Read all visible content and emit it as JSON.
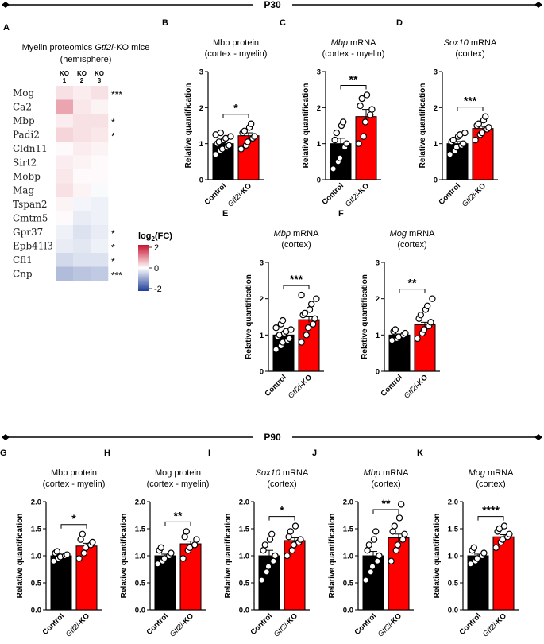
{
  "sections": {
    "top": {
      "label": "P30"
    },
    "bottom": {
      "label": "P90"
    }
  },
  "heatmap": {
    "letter": "A",
    "title_line1_prefix": "Myelin proteomics ",
    "title_line1_italic": "Gtf2i",
    "title_line1_suffix": "-KO mice",
    "title_line2": "(hemisphere)",
    "columns": [
      {
        "top": "KO",
        "bottom": "1"
      },
      {
        "top": "KO",
        "bottom": "2"
      },
      {
        "top": "KO",
        "bottom": "3"
      }
    ],
    "rows": [
      {
        "gene": "Mog",
        "sig": "***",
        "values": [
          0.25,
          0.15,
          0.25
        ]
      },
      {
        "gene": "Ca2",
        "sig": "",
        "values": [
          0.75,
          0.2,
          0.1
        ]
      },
      {
        "gene": "Mbp",
        "sig": "*",
        "values": [
          0.15,
          0.25,
          0.25
        ]
      },
      {
        "gene": "Padi2",
        "sig": "*",
        "values": [
          0.35,
          0.25,
          0.2
        ]
      },
      {
        "gene": "Cldn11",
        "sig": "",
        "values": [
          0.05,
          0.15,
          0.1
        ]
      },
      {
        "gene": "Sirt2",
        "sig": "",
        "values": [
          0.15,
          0.1,
          0.05
        ]
      },
      {
        "gene": "Mobp",
        "sig": "",
        "values": [
          0.2,
          0.05,
          0.05
        ]
      },
      {
        "gene": "Mag",
        "sig": "",
        "values": [
          0.25,
          0.1,
          -0.05
        ]
      },
      {
        "gene": "Tspan2",
        "sig": "",
        "values": [
          0.1,
          -0.1,
          -0.15
        ]
      },
      {
        "gene": "Cmtm5",
        "sig": "",
        "values": [
          0.05,
          -0.2,
          -0.15
        ]
      },
      {
        "gene": "Gpr37",
        "sig": "*",
        "values": [
          -0.15,
          -0.3,
          -0.2
        ]
      },
      {
        "gene": "Epb41l3",
        "sig": "*",
        "values": [
          -0.2,
          -0.25,
          -0.15
        ]
      },
      {
        "gene": "Cfl1",
        "sig": "*",
        "values": [
          -0.4,
          -0.3,
          -0.3
        ]
      },
      {
        "gene": "Cnp",
        "sig": "***",
        "values": [
          -0.7,
          -0.6,
          -0.55
        ]
      }
    ],
    "legend": {
      "title_prefix": "log",
      "title_sub": "2",
      "title_suffix": "(FC)",
      "ticks": [
        "2",
        "0",
        "-2"
      ]
    },
    "colors": {
      "red": "#c8102e",
      "white": "#ffffff",
      "blue": "#1f3f99"
    }
  },
  "chart_data": [
    {
      "id": "B",
      "type": "bar",
      "title_italic": "",
      "title_rest": "Mbp protein",
      "subtitle": "(cortex - myelin)",
      "ylabel": "Relative quantification",
      "ylim": [
        0,
        3
      ],
      "yticks": [
        "0",
        "1",
        "2",
        "3"
      ],
      "categories": [
        "Control",
        "Gtf2i-KO"
      ],
      "cat2_italic": "Gtf2i",
      "cat2_rest": "-KO",
      "values": [
        1.0,
        1.22
      ],
      "errors": [
        0.07,
        0.08
      ],
      "points": [
        [
          0.7,
          0.8,
          0.85,
          0.9,
          0.95,
          1.0,
          1.05,
          1.1,
          1.15,
          1.2,
          1.25,
          1.3
        ],
        [
          0.85,
          0.95,
          1.05,
          1.15,
          1.2,
          1.3,
          1.35,
          1.45,
          1.55
        ]
      ],
      "sig": "*"
    },
    {
      "id": "C",
      "type": "bar",
      "title_italic": "Mbp",
      "title_rest": " mRNA",
      "subtitle": "(cortex - myelin)",
      "ylabel": "Relative quantification",
      "ylim": [
        0,
        3
      ],
      "yticks": [
        "0",
        "1",
        "2",
        "3"
      ],
      "categories": [
        "Control",
        "Gtf2i-KO"
      ],
      "cat2_italic": "Gtf2i",
      "cat2_rest": "-KO",
      "values": [
        1.0,
        1.75
      ],
      "errors": [
        0.15,
        0.2
      ],
      "points": [
        [
          0.3,
          0.5,
          0.6,
          0.9,
          1.0,
          1.1,
          1.3,
          1.5,
          1.6
        ],
        [
          1.0,
          1.2,
          1.6,
          1.8,
          1.95,
          2.05,
          2.25,
          2.35
        ]
      ],
      "sig": "**"
    },
    {
      "id": "D",
      "type": "bar",
      "title_italic": "Sox10",
      "title_rest": " mRNA",
      "subtitle": "(cortex)",
      "ylabel": "Relative quantification",
      "ylim": [
        0,
        3
      ],
      "yticks": [
        "0",
        "1",
        "2",
        "3"
      ],
      "categories": [
        "Control",
        "Gtf2i-KO"
      ],
      "cat2_italic": "Gtf2i",
      "cat2_rest": "-KO",
      "values": [
        1.0,
        1.42
      ],
      "errors": [
        0.06,
        0.06
      ],
      "points": [
        [
          0.7,
          0.8,
          0.9,
          0.95,
          1.0,
          1.05,
          1.1,
          1.2,
          1.25,
          1.3
        ],
        [
          1.1,
          1.25,
          1.3,
          1.4,
          1.45,
          1.5,
          1.55,
          1.65,
          1.75
        ]
      ],
      "sig": "***"
    },
    {
      "id": "E",
      "type": "bar",
      "title_italic": "Mbp",
      "title_rest": " mRNA",
      "subtitle": "(cortex)",
      "ylabel": "Relative quantification",
      "ylim": [
        0,
        3
      ],
      "yticks": [
        "0",
        "1",
        "2",
        "3"
      ],
      "categories": [
        "Control",
        "Gtf2i-KO"
      ],
      "cat2_italic": "Gtf2i",
      "cat2_rest": "-KO",
      "values": [
        1.0,
        1.42
      ],
      "errors": [
        0.05,
        0.08
      ],
      "points": [
        [
          0.6,
          0.7,
          0.8,
          0.85,
          0.9,
          0.95,
          1.0,
          1.05,
          1.1,
          1.15,
          1.2,
          1.3,
          1.4
        ],
        [
          0.8,
          1.0,
          1.2,
          1.3,
          1.45,
          1.55,
          1.6,
          1.7,
          1.85,
          2.0,
          2.1
        ]
      ],
      "sig": "***"
    },
    {
      "id": "F",
      "type": "bar",
      "title_italic": "Mog",
      "title_rest": " mRNA",
      "subtitle": "(cortex)",
      "ylabel": "Relative quantification",
      "ylim": [
        0,
        3
      ],
      "yticks": [
        "0",
        "1",
        "2",
        "3"
      ],
      "categories": [
        "Control",
        "Gtf2i-KO"
      ],
      "cat2_italic": "Gtf2i",
      "cat2_rest": "-KO",
      "values": [
        1.0,
        1.28
      ],
      "errors": [
        0.03,
        0.07
      ],
      "points": [
        [
          0.85,
          0.9,
          0.95,
          1.0,
          1.05,
          1.1,
          1.15
        ],
        [
          0.9,
          1.05,
          1.15,
          1.25,
          1.35,
          1.45,
          1.55,
          1.7,
          1.8,
          2.0
        ]
      ],
      "sig": "**"
    },
    {
      "id": "G",
      "type": "bar",
      "title_italic": "",
      "title_rest": "Mbp protein",
      "subtitle": "(cortex - myelin)",
      "ylabel": "Relative quantification",
      "ylim": [
        0,
        2
      ],
      "yticks": [
        "0.0",
        "0.5",
        "1.0",
        "1.5",
        "2.0"
      ],
      "categories": [
        "Control",
        "Gtf2i-KO"
      ],
      "cat2_italic": "Gtf2i",
      "cat2_rest": "-KO",
      "values": [
        1.0,
        1.18
      ],
      "errors": [
        0.03,
        0.05
      ],
      "points": [
        [
          0.9,
          0.95,
          0.98,
          1.0,
          1.02,
          1.05,
          1.08
        ],
        [
          0.95,
          1.05,
          1.15,
          1.2,
          1.25,
          1.3,
          1.4
        ]
      ],
      "sig": "*"
    },
    {
      "id": "H",
      "type": "bar",
      "title_italic": "",
      "title_rest": "Mog protein",
      "subtitle": "(cortex - myelin)",
      "ylabel": "Relative quantification",
      "ylim": [
        0,
        2
      ],
      "yticks": [
        "0.0",
        "0.5",
        "1.0",
        "1.5",
        "2.0"
      ],
      "categories": [
        "Control",
        "Gtf2i-KO"
      ],
      "cat2_italic": "Gtf2i",
      "cat2_rest": "-KO",
      "values": [
        1.0,
        1.22
      ],
      "errors": [
        0.03,
        0.05
      ],
      "points": [
        [
          0.85,
          0.9,
          0.95,
          1.0,
          1.05,
          1.1,
          1.15
        ],
        [
          0.95,
          1.1,
          1.15,
          1.2,
          1.3,
          1.35,
          1.45
        ]
      ],
      "sig": "**"
    },
    {
      "id": "I",
      "type": "bar",
      "title_italic": "Sox10",
      "title_rest": " mRNA",
      "subtitle": "(cortex)",
      "ylabel": "Relative quantification",
      "ylim": [
        0,
        2
      ],
      "yticks": [
        "0.0",
        "0.5",
        "1.0",
        "1.5",
        "2.0"
      ],
      "categories": [
        "Control",
        "Gtf2i-KO"
      ],
      "cat2_italic": "Gtf2i",
      "cat2_rest": "-KO",
      "values": [
        1.0,
        1.28
      ],
      "errors": [
        0.1,
        0.05
      ],
      "points": [
        [
          0.55,
          0.7,
          0.8,
          0.9,
          1.0,
          1.1,
          1.2,
          1.3,
          1.4
        ],
        [
          1.0,
          1.1,
          1.2,
          1.25,
          1.3,
          1.35,
          1.45,
          1.55
        ]
      ],
      "sig": "*"
    },
    {
      "id": "J",
      "type": "bar",
      "title_italic": "Mbp",
      "title_rest": " mRNA",
      "subtitle": "(cortex)",
      "ylabel": "Relative quantification",
      "ylim": [
        0,
        2
      ],
      "yticks": [
        "0.0",
        "0.5",
        "1.0",
        "1.5",
        "2.0"
      ],
      "categories": [
        "Control",
        "Gtf2i-KO"
      ],
      "cat2_italic": "Gtf2i",
      "cat2_rest": "-KO",
      "values": [
        1.0,
        1.33
      ],
      "errors": [
        0.08,
        0.07
      ],
      "points": [
        [
          0.55,
          0.7,
          0.8,
          0.9,
          1.0,
          1.1,
          1.2,
          1.3,
          1.45
        ],
        [
          0.9,
          1.1,
          1.2,
          1.3,
          1.4,
          1.45,
          1.55,
          1.7,
          1.95
        ]
      ],
      "sig": "**"
    },
    {
      "id": "K",
      "type": "bar",
      "title_italic": "Mog",
      "title_rest": " mRNA",
      "subtitle": "(cortex)",
      "ylabel": "Relative quantification",
      "ylim": [
        0,
        2
      ],
      "yticks": [
        "0.0",
        "0.5",
        "1.0",
        "1.5",
        "2.0"
      ],
      "categories": [
        "Control",
        "Gtf2i-KO"
      ],
      "cat2_italic": "Gtf2i",
      "cat2_rest": "-KO",
      "values": [
        1.0,
        1.35
      ],
      "errors": [
        0.03,
        0.04
      ],
      "points": [
        [
          0.85,
          0.9,
          0.95,
          1.0,
          1.05,
          1.1,
          1.15
        ],
        [
          1.15,
          1.25,
          1.3,
          1.35,
          1.4,
          1.45,
          1.5,
          1.55
        ]
      ],
      "sig": "****"
    }
  ]
}
